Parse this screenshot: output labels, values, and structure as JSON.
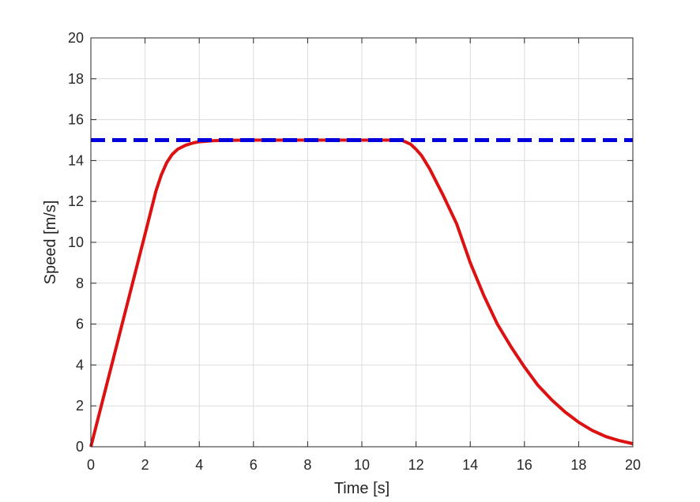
{
  "chart_data": {
    "type": "line",
    "title": "",
    "xlabel": "Time [s]",
    "ylabel": "Speed [m/s]",
    "xlim": [
      0,
      20
    ],
    "ylim": [
      0,
      20
    ],
    "xticks": [
      0,
      2,
      4,
      6,
      8,
      10,
      12,
      14,
      16,
      18,
      20
    ],
    "yticks": [
      0,
      2,
      4,
      6,
      8,
      10,
      12,
      14,
      16,
      18,
      20
    ],
    "grid": true,
    "legend": "none",
    "series": [
      {
        "style": "dashed",
        "color": "#0000dd",
        "x": [
          0,
          20
        ],
        "y": [
          15,
          15
        ]
      },
      {
        "style": "solid",
        "color": "#dd1111",
        "x": [
          0,
          0.5,
          1.0,
          1.5,
          2.0,
          2.4,
          2.6,
          2.8,
          3.0,
          3.2,
          3.5,
          3.8,
          4.0,
          4.5,
          5.0,
          6.0,
          7.0,
          8.0,
          9.0,
          10.0,
          11.0,
          11.5,
          11.8,
          12.0,
          12.2,
          12.5,
          13.0,
          13.5,
          14.0,
          14.5,
          15.0,
          15.5,
          16.0,
          16.5,
          17.0,
          17.5,
          18.0,
          18.5,
          19.0,
          19.5,
          20.0
        ],
        "y": [
          0,
          2.6,
          5.2,
          7.8,
          10.4,
          12.5,
          13.3,
          13.9,
          14.3,
          14.55,
          14.75,
          14.87,
          14.92,
          14.97,
          14.99,
          15.0,
          15.0,
          15.0,
          15.0,
          15.0,
          15.0,
          14.98,
          14.8,
          14.55,
          14.25,
          13.6,
          12.3,
          10.9,
          9.0,
          7.4,
          6.0,
          4.9,
          3.9,
          3.0,
          2.3,
          1.7,
          1.2,
          0.8,
          0.5,
          0.3,
          0.15
        ]
      }
    ]
  }
}
